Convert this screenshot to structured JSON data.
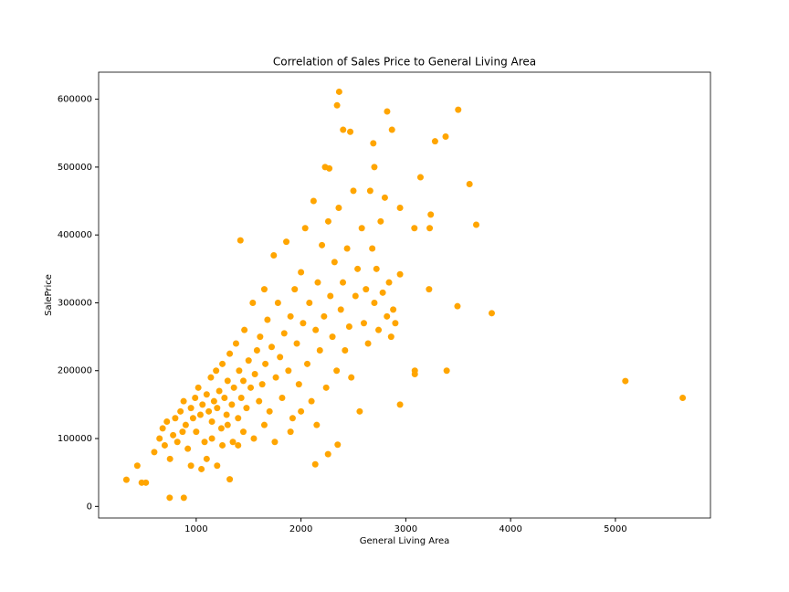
{
  "chart_data": {
    "type": "scatter",
    "title": "Correlation of Sales Price to General Living Area",
    "xlabel": "General Living Area",
    "ylabel": "SalePrice",
    "color": "#ffa500",
    "xlim": [
      69,
      5907
    ],
    "ylim": [
      -17071,
      639860
    ],
    "xticks": [
      1000,
      2000,
      3000,
      4000,
      5000
    ],
    "yticks": [
      0,
      100000,
      200000,
      300000,
      400000,
      500000,
      600000
    ],
    "x": [
      5642,
      5095,
      3820,
      3672,
      3608,
      3500,
      3493,
      3390,
      3380,
      3279,
      3238,
      3228,
      3222,
      3140,
      3086,
      3086,
      3082,
      2945,
      2945,
      2945,
      2868,
      2822,
      2690,
      2700,
      2470,
      2402,
      2364,
      2344,
      2230,
      2270,
      1422,
      334,
      438,
      480,
      520,
      747,
      882,
      1320,
      2136,
      2258,
      2350,
      600,
      650,
      680,
      700,
      720,
      750,
      780,
      800,
      820,
      850,
      870,
      880,
      900,
      920,
      950,
      970,
      990,
      1000,
      1020,
      1040,
      1060,
      1080,
      1100,
      1120,
      1140,
      1150,
      1170,
      1190,
      1200,
      1220,
      1240,
      1250,
      1270,
      1290,
      1300,
      1320,
      1340,
      1360,
      1380,
      1400,
      1410,
      1430,
      1450,
      1460,
      1480,
      1500,
      1520,
      1540,
      1560,
      1580,
      1600,
      1610,
      1630,
      1650,
      1660,
      1680,
      1700,
      1720,
      1740,
      1760,
      1780,
      1800,
      1820,
      1840,
      1860,
      1880,
      1900,
      1920,
      1940,
      1960,
      1980,
      2000,
      2020,
      2040,
      2060,
      2080,
      2100,
      2120,
      2140,
      2160,
      2180,
      2200,
      2220,
      2240,
      2260,
      2280,
      2300,
      2320,
      2340,
      2360,
      2380,
      2400,
      2420,
      2440,
      2460,
      2480,
      2500,
      2520,
      2540,
      2560,
      2580,
      2600,
      2620,
      2640,
      2660,
      2680,
      2700,
      2720,
      2740,
      2760,
      2780,
      2800,
      2820,
      2840,
      2860,
      2880,
      2900,
      1550,
      1250,
      1100,
      950,
      1650,
      1750,
      1900,
      2000,
      2150,
      1200,
      1050,
      1350,
      1450,
      1150,
      1300,
      1400
    ],
    "values": [
      160000,
      184750,
      284700,
      415000,
      475000,
      584500,
      295000,
      200000,
      545000,
      538000,
      430000,
      410000,
      320000,
      485000,
      200000,
      195000,
      410000,
      150000,
      440000,
      342000,
      555000,
      582000,
      535000,
      500000,
      552000,
      555000,
      611000,
      591000,
      500000,
      498000,
      392000,
      39300,
      60000,
      35000,
      35000,
      12789,
      12700,
      40000,
      62000,
      77000,
      91000,
      80000,
      100000,
      115000,
      90000,
      125000,
      70000,
      105000,
      130000,
      95000,
      140000,
      110000,
      155000,
      120000,
      85000,
      145000,
      130000,
      160000,
      110000,
      175000,
      135000,
      150000,
      95000,
      165000,
      140000,
      190000,
      125000,
      155000,
      200000,
      145000,
      170000,
      115000,
      210000,
      160000,
      135000,
      185000,
      225000,
      150000,
      175000,
      240000,
      130000,
      200000,
      160000,
      185000,
      260000,
      145000,
      215000,
      175000,
      300000,
      195000,
      230000,
      155000,
      250000,
      180000,
      320000,
      210000,
      275000,
      140000,
      235000,
      370000,
      190000,
      300000,
      220000,
      160000,
      255000,
      390000,
      200000,
      280000,
      130000,
      320000,
      240000,
      180000,
      345000,
      270000,
      410000,
      210000,
      300000,
      155000,
      450000,
      260000,
      330000,
      230000,
      385000,
      280000,
      175000,
      420000,
      310000,
      250000,
      360000,
      200000,
      440000,
      290000,
      330000,
      230000,
      380000,
      265000,
      190000,
      465000,
      310000,
      350000,
      140000,
      410000,
      270000,
      320000,
      240000,
      465000,
      380000,
      300000,
      350000,
      260000,
      420000,
      315000,
      455000,
      280000,
      330000,
      250000,
      290000,
      270000,
      100000,
      90000,
      70000,
      60000,
      120000,
      95000,
      110000,
      140000,
      120000,
      60000,
      55000,
      95000,
      110000,
      100000,
      120000,
      90000
    ]
  }
}
